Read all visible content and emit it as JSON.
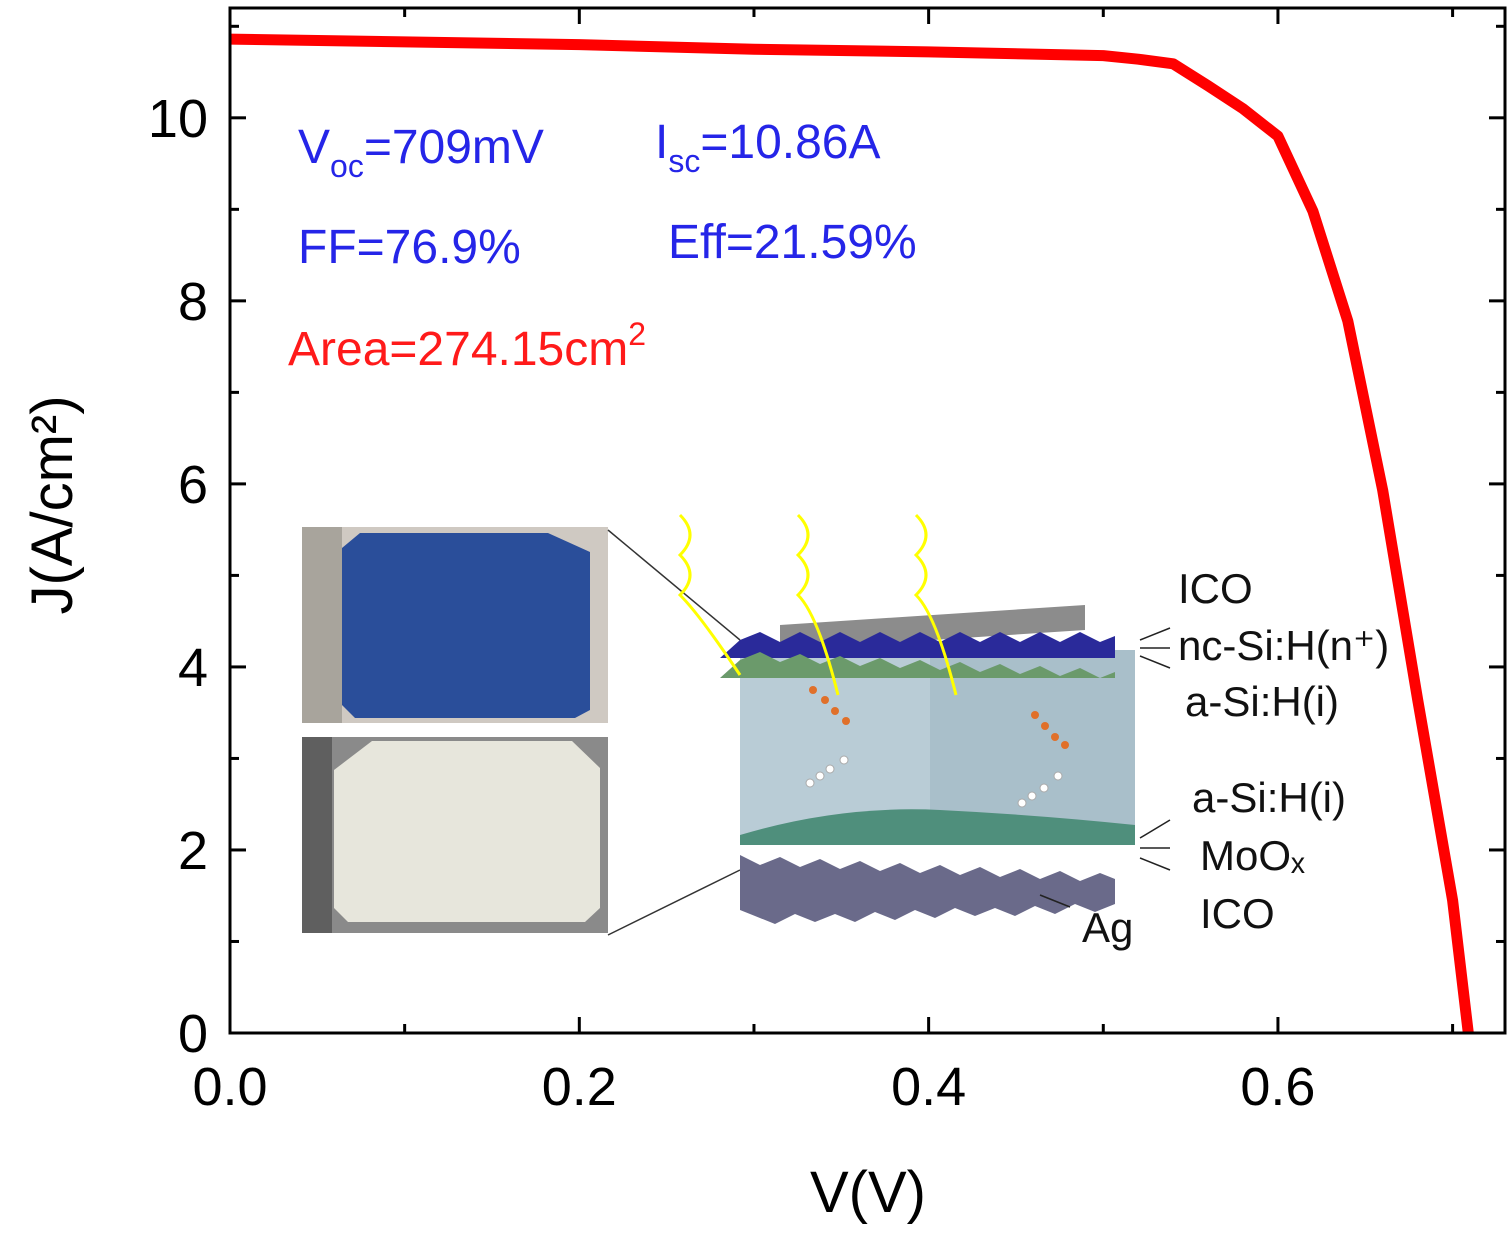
{
  "chart_data": {
    "type": "line",
    "x_label": "V(V)",
    "y_label": "J(A/cm²)",
    "x": [
      0,
      0.1,
      0.2,
      0.3,
      0.4,
      0.5,
      0.52,
      0.54,
      0.56,
      0.58,
      0.6,
      0.62,
      0.64,
      0.66,
      0.68,
      0.7,
      0.709
    ],
    "series": [
      {
        "color": "#ff0000",
        "values": [
          10.86,
          10.83,
          10.8,
          10.75,
          10.72,
          10.68,
          10.64,
          10.59,
          10.35,
          10.1,
          9.8,
          8.98,
          7.78,
          5.93,
          3.64,
          1.45,
          0
        ]
      }
    ],
    "xlim": [
      0,
      0.73
    ],
    "ylim": [
      0,
      11.2
    ],
    "xticks": [
      {
        "value": 0,
        "label": "0.0"
      },
      0.2,
      0.4,
      0.6
    ],
    "xminor_ticks": [
      0.1,
      0.3,
      0.5,
      0.7
    ],
    "yticks": [
      0,
      2,
      4,
      6,
      8,
      10
    ],
    "yminor_ticks": [
      1,
      3,
      5,
      7,
      9,
      11
    ],
    "annotations": [
      {
        "color": "#2525e8",
        "parts": [
          {
            "text": "V"
          },
          {
            "text": "oc",
            "sub": true
          },
          {
            "text": "=709mV"
          }
        ]
      },
      {
        "color": "#2525e8",
        "parts": [
          {
            "text": "I"
          },
          {
            "text": "sc",
            "sub": true
          },
          {
            "text": "=10.86A"
          }
        ]
      },
      {
        "color": "#2525e8",
        "parts": [
          {
            "text": "FF=76.9%"
          }
        ]
      },
      {
        "color": "#2525e8",
        "parts": [
          {
            "text": "Eff=21.59%"
          }
        ]
      },
      {
        "color": "#ff1a1a",
        "parts": [
          {
            "text": "Area=274.15cm"
          },
          {
            "text": "2",
            "sup": true
          }
        ]
      }
    ],
    "inset_labels": [
      "ICO",
      "nc-Si:H(n⁺)",
      "a-Si:H(i)",
      "a-Si:H(i)",
      "MoOₓ",
      "ICO",
      "Ag"
    ]
  }
}
